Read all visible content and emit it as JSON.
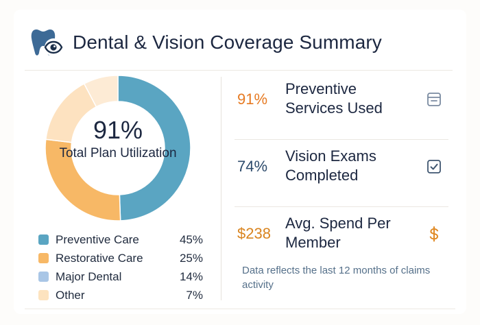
{
  "header": {
    "title": "Dental & Vision Coverage Summary",
    "logo_icon": "tooth-eye-icon"
  },
  "chart_data": {
    "type": "pie",
    "variant": "donut",
    "center_value": "91%",
    "center_label": "Total Plan Utilization",
    "categories": [
      "Preventive Care",
      "Restorative Care",
      "Major Dental",
      "Other"
    ],
    "values": [
      45,
      25,
      14,
      7
    ],
    "value_labels": [
      "45%",
      "25%",
      "14%",
      "7%"
    ],
    "colors": [
      "#5aa5c2",
      "#f7b866",
      "#a9c6e6",
      "#fde3bf"
    ],
    "segment_colors": [
      "#5aa5c2",
      "#f7b866",
      "#fde2c0",
      "#fdebd5"
    ],
    "legend_position": "bottom"
  },
  "metrics": [
    {
      "value": "91%",
      "label": "Preventive Services Used",
      "color": "#e67a22",
      "icon": "clipboard-icon"
    },
    {
      "value": "74%",
      "label": "Vision Exams Completed",
      "color": "#2c4a6b",
      "icon": "checkbox-icon"
    },
    {
      "value": "$238",
      "label": "Avg. Spend Per Member",
      "color": "#d9841f",
      "icon": "dollar-icon"
    }
  ],
  "note": "Data reflects the last 12 months of claims activity"
}
